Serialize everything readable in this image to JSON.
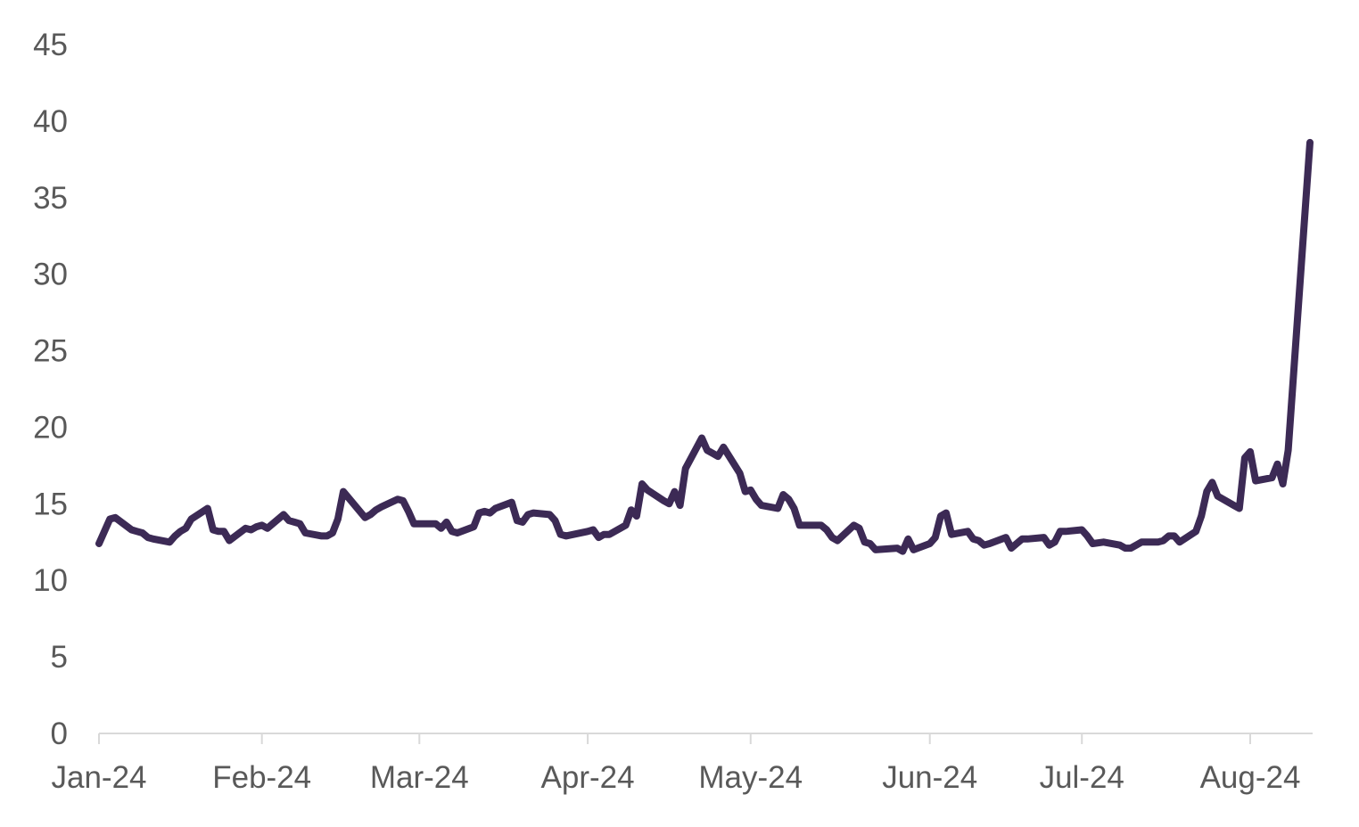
{
  "chart_data": {
    "type": "line",
    "title": "",
    "xlabel": "",
    "ylabel": "",
    "ylim": [
      0,
      45
    ],
    "y_ticks": [
      0,
      5,
      10,
      15,
      20,
      25,
      30,
      35,
      40,
      45
    ],
    "y_tick_labels": [
      "0",
      "5",
      "10",
      "15",
      "20",
      "25",
      "30",
      "35",
      "40",
      "45"
    ],
    "x_tick_dates": [
      "2024-01-02",
      "2024-02-01",
      "2024-03-01",
      "2024-04-01",
      "2024-05-01",
      "2024-06-03",
      "2024-07-01",
      "2024-08-01"
    ],
    "x_tick_labels": [
      "Jan-24",
      "Feb-24",
      "Mar-24",
      "Apr-24",
      "May-24",
      "Jun-24",
      "Jul-24",
      "Aug-24"
    ],
    "xlim": [
      "2024-01-02",
      "2024-08-06"
    ],
    "grid": false,
    "legend": "none",
    "series": [
      {
        "color": "#3c2a55",
        "points": [
          [
            "2024-01-02",
            12.4
          ],
          [
            "2024-01-03",
            13.2
          ],
          [
            "2024-01-04",
            14.0
          ],
          [
            "2024-01-05",
            14.1
          ],
          [
            "2024-01-08",
            13.3
          ],
          [
            "2024-01-09",
            13.2
          ],
          [
            "2024-01-10",
            13.1
          ],
          [
            "2024-01-11",
            12.8
          ],
          [
            "2024-01-12",
            12.7
          ],
          [
            "2024-01-15",
            12.5
          ],
          [
            "2024-01-16",
            12.9
          ],
          [
            "2024-01-17",
            13.2
          ],
          [
            "2024-01-18",
            13.4
          ],
          [
            "2024-01-19",
            14.0
          ],
          [
            "2024-01-22",
            14.7
          ],
          [
            "2024-01-23",
            13.3
          ],
          [
            "2024-01-24",
            13.2
          ],
          [
            "2024-01-25",
            13.2
          ],
          [
            "2024-01-26",
            12.6
          ],
          [
            "2024-01-29",
            13.4
          ],
          [
            "2024-01-30",
            13.3
          ],
          [
            "2024-01-31",
            13.5
          ],
          [
            "2024-02-01",
            13.6
          ],
          [
            "2024-02-02",
            13.4
          ],
          [
            "2024-02-05",
            14.3
          ],
          [
            "2024-02-06",
            13.9
          ],
          [
            "2024-02-07",
            13.8
          ],
          [
            "2024-02-08",
            13.7
          ],
          [
            "2024-02-09",
            13.1
          ],
          [
            "2024-02-12",
            12.9
          ],
          [
            "2024-02-13",
            12.9
          ],
          [
            "2024-02-14",
            13.1
          ],
          [
            "2024-02-15",
            14.0
          ],
          [
            "2024-02-16",
            15.8
          ],
          [
            "2024-02-20",
            14.1
          ],
          [
            "2024-02-21",
            14.3
          ],
          [
            "2024-02-22",
            14.6
          ],
          [
            "2024-02-23",
            14.8
          ],
          [
            "2024-02-26",
            15.3
          ],
          [
            "2024-02-27",
            15.2
          ],
          [
            "2024-02-28",
            14.5
          ],
          [
            "2024-02-29",
            13.7
          ],
          [
            "2024-03-01",
            13.7
          ],
          [
            "2024-03-04",
            13.7
          ],
          [
            "2024-03-05",
            13.4
          ],
          [
            "2024-03-06",
            13.8
          ],
          [
            "2024-03-07",
            13.2
          ],
          [
            "2024-03-08",
            13.1
          ],
          [
            "2024-03-11",
            13.5
          ],
          [
            "2024-03-12",
            14.4
          ],
          [
            "2024-03-13",
            14.5
          ],
          [
            "2024-03-14",
            14.4
          ],
          [
            "2024-03-15",
            14.7
          ],
          [
            "2024-03-18",
            15.1
          ],
          [
            "2024-03-19",
            13.9
          ],
          [
            "2024-03-20",
            13.8
          ],
          [
            "2024-03-21",
            14.3
          ],
          [
            "2024-03-22",
            14.4
          ],
          [
            "2024-03-25",
            14.3
          ],
          [
            "2024-03-26",
            13.9
          ],
          [
            "2024-03-27",
            13.0
          ],
          [
            "2024-03-28",
            12.9
          ],
          [
            "2024-04-01",
            13.2
          ],
          [
            "2024-04-02",
            13.3
          ],
          [
            "2024-04-03",
            12.8
          ],
          [
            "2024-04-04",
            13.0
          ],
          [
            "2024-04-05",
            13.0
          ],
          [
            "2024-04-08",
            13.6
          ],
          [
            "2024-04-09",
            14.6
          ],
          [
            "2024-04-10",
            14.2
          ],
          [
            "2024-04-11",
            16.3
          ],
          [
            "2024-04-12",
            15.9
          ],
          [
            "2024-04-15",
            15.2
          ],
          [
            "2024-04-16",
            15.0
          ],
          [
            "2024-04-17",
            15.8
          ],
          [
            "2024-04-18",
            14.9
          ],
          [
            "2024-04-19",
            17.3
          ],
          [
            "2024-04-22",
            19.3
          ],
          [
            "2024-04-23",
            18.5
          ],
          [
            "2024-04-24",
            18.3
          ],
          [
            "2024-04-25",
            18.1
          ],
          [
            "2024-04-26",
            18.7
          ],
          [
            "2024-04-29",
            17.0
          ],
          [
            "2024-04-30",
            15.8
          ],
          [
            "2024-05-01",
            15.9
          ],
          [
            "2024-05-02",
            15.3
          ],
          [
            "2024-05-03",
            14.9
          ],
          [
            "2024-05-06",
            14.7
          ],
          [
            "2024-05-07",
            15.6
          ],
          [
            "2024-05-08",
            15.3
          ],
          [
            "2024-05-09",
            14.7
          ],
          [
            "2024-05-10",
            13.6
          ],
          [
            "2024-05-13",
            13.6
          ],
          [
            "2024-05-14",
            13.6
          ],
          [
            "2024-05-15",
            13.3
          ],
          [
            "2024-05-16",
            12.8
          ],
          [
            "2024-05-17",
            12.6
          ],
          [
            "2024-05-20",
            13.6
          ],
          [
            "2024-05-21",
            13.4
          ],
          [
            "2024-05-22",
            12.5
          ],
          [
            "2024-05-23",
            12.4
          ],
          [
            "2024-05-24",
            12.0
          ],
          [
            "2024-05-28",
            12.1
          ],
          [
            "2024-05-29",
            11.9
          ],
          [
            "2024-05-30",
            12.7
          ],
          [
            "2024-05-31",
            12.0
          ],
          [
            "2024-06-03",
            12.4
          ],
          [
            "2024-06-04",
            12.8
          ],
          [
            "2024-06-05",
            14.2
          ],
          [
            "2024-06-06",
            14.4
          ],
          [
            "2024-06-07",
            13.0
          ],
          [
            "2024-06-10",
            13.2
          ],
          [
            "2024-06-11",
            12.7
          ],
          [
            "2024-06-12",
            12.6
          ],
          [
            "2024-06-13",
            12.3
          ],
          [
            "2024-06-14",
            12.4
          ],
          [
            "2024-06-17",
            12.8
          ],
          [
            "2024-06-18",
            12.1
          ],
          [
            "2024-06-20",
            12.7
          ],
          [
            "2024-06-21",
            12.7
          ],
          [
            "2024-06-24",
            12.8
          ],
          [
            "2024-06-25",
            12.3
          ],
          [
            "2024-06-26",
            12.5
          ],
          [
            "2024-06-27",
            13.2
          ],
          [
            "2024-06-28",
            13.2
          ],
          [
            "2024-07-01",
            13.3
          ],
          [
            "2024-07-02",
            12.9
          ],
          [
            "2024-07-03",
            12.4
          ],
          [
            "2024-07-05",
            12.5
          ],
          [
            "2024-07-08",
            12.3
          ],
          [
            "2024-07-09",
            12.1
          ],
          [
            "2024-07-10",
            12.1
          ],
          [
            "2024-07-11",
            12.3
          ],
          [
            "2024-07-12",
            12.5
          ],
          [
            "2024-07-15",
            12.5
          ],
          [
            "2024-07-16",
            12.6
          ],
          [
            "2024-07-17",
            12.9
          ],
          [
            "2024-07-18",
            12.9
          ],
          [
            "2024-07-19",
            12.5
          ],
          [
            "2024-07-22",
            13.2
          ],
          [
            "2024-07-23",
            14.2
          ],
          [
            "2024-07-24",
            15.8
          ],
          [
            "2024-07-25",
            16.4
          ],
          [
            "2024-07-26",
            15.5
          ],
          [
            "2024-07-29",
            14.9
          ],
          [
            "2024-07-30",
            14.7
          ],
          [
            "2024-07-31",
            18.0
          ],
          [
            "2024-08-01",
            18.4
          ],
          [
            "2024-08-02",
            16.5
          ],
          [
            "2024-08-05",
            16.7
          ],
          [
            "2024-08-06",
            17.6
          ],
          [
            "2024-08-07",
            16.3
          ],
          [
            "2024-08-08",
            18.5
          ],
          [
            "2024-08-12",
            38.6
          ]
        ]
      }
    ]
  }
}
